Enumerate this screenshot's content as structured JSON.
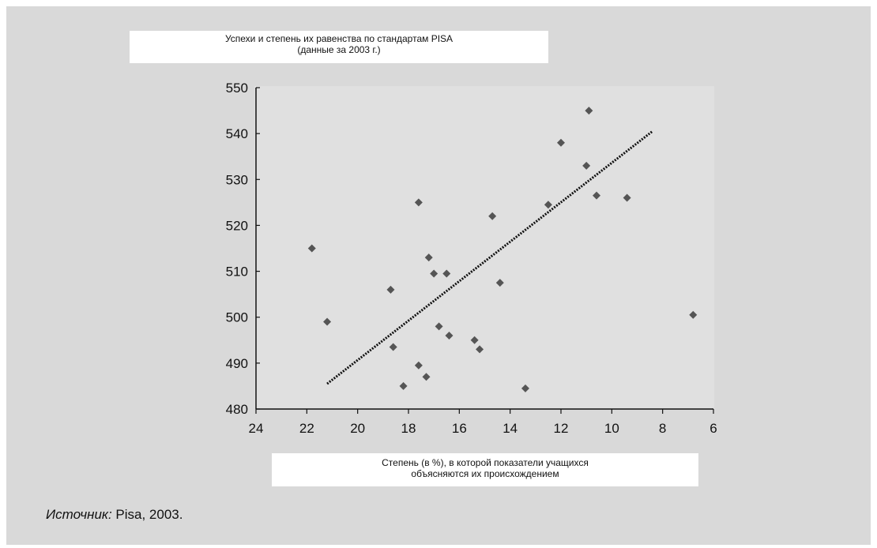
{
  "chart_data": {
    "type": "scatter",
    "title_lines": [
      "Успехи и степень их равенства по стандартам PISA",
      "(данные за 2003 г.)"
    ],
    "xlabel_lines": [
      "Степень (в %), в которой показатели учащихся",
      "объясняются их происхождением"
    ],
    "ylabel": "",
    "xlim": [
      24,
      6
    ],
    "ylim": [
      480,
      550
    ],
    "x_ticks": [
      24,
      22,
      20,
      18,
      16,
      14,
      12,
      10,
      8,
      6
    ],
    "y_ticks": [
      480,
      490,
      500,
      510,
      520,
      530,
      540,
      550
    ],
    "grid": false,
    "legend": "none",
    "marker_color": "#555555",
    "trend_color": "#111111",
    "points": [
      {
        "x": 21.8,
        "y": 515
      },
      {
        "x": 21.2,
        "y": 499
      },
      {
        "x": 18.7,
        "y": 506
      },
      {
        "x": 18.6,
        "y": 493.5
      },
      {
        "x": 18.2,
        "y": 485
      },
      {
        "x": 17.6,
        "y": 525
      },
      {
        "x": 17.6,
        "y": 489.5
      },
      {
        "x": 17.3,
        "y": 487
      },
      {
        "x": 17.2,
        "y": 513
      },
      {
        "x": 17.0,
        "y": 509.5
      },
      {
        "x": 16.8,
        "y": 498
      },
      {
        "x": 16.5,
        "y": 509.5
      },
      {
        "x": 16.4,
        "y": 496
      },
      {
        "x": 15.4,
        "y": 495
      },
      {
        "x": 15.2,
        "y": 493
      },
      {
        "x": 14.7,
        "y": 522
      },
      {
        "x": 14.4,
        "y": 507.5
      },
      {
        "x": 13.4,
        "y": 484.5
      },
      {
        "x": 12.5,
        "y": 524.5
      },
      {
        "x": 12.0,
        "y": 538
      },
      {
        "x": 11.0,
        "y": 533
      },
      {
        "x": 10.9,
        "y": 545
      },
      {
        "x": 10.6,
        "y": 526.5
      },
      {
        "x": 9.4,
        "y": 526
      },
      {
        "x": 6.8,
        "y": 500.5
      }
    ],
    "trendline": {
      "x": [
        21.2,
        8.4
      ],
      "y": [
        485.5,
        540.5
      ]
    }
  },
  "source": {
    "label": "Источник:",
    "text": " Pisa, 2003."
  }
}
